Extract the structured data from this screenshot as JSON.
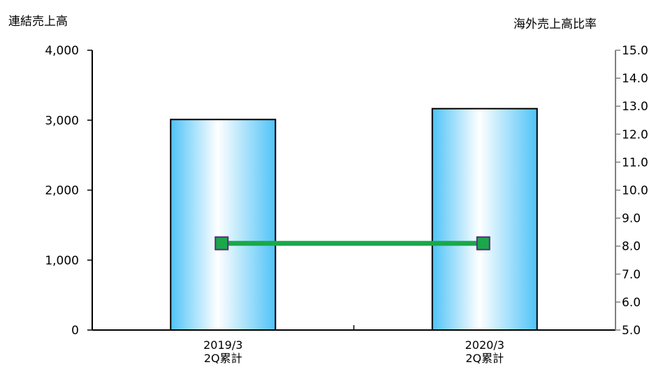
{
  "chart_data": {
    "type": "bar",
    "categories": [
      [
        "2019/3",
        "2Q累計"
      ],
      [
        "2020/3",
        "2Q累計"
      ]
    ],
    "left_axis": {
      "title": "連結売上高",
      "ylim": [
        0,
        4000
      ],
      "ticks": [
        0,
        1000,
        2000,
        3000,
        4000
      ],
      "tick_labels": [
        "0",
        "1,000",
        "2,000",
        "3,000",
        "4,000"
      ]
    },
    "right_axis": {
      "title": "海外売上高比率",
      "ylim": [
        5.0,
        15.0
      ],
      "ticks": [
        5,
        6,
        7,
        8,
        9,
        10,
        11,
        12,
        13,
        14,
        15
      ],
      "tick_labels": [
        "5.0",
        "6.0",
        "7.0",
        "8.0",
        "9.0",
        "10.0",
        "11.0",
        "12.0",
        "13.0",
        "14.0",
        "15.0"
      ]
    },
    "series": [
      {
        "type": "bar",
        "axis": "left",
        "values": [
          3010,
          3165
        ]
      },
      {
        "type": "line",
        "axis": "right",
        "values": [
          8.1,
          8.1
        ]
      }
    ],
    "grid": false,
    "legend": "none",
    "colors": {
      "bar_edge": "#4fc3f7",
      "bar_center": "#ffffff",
      "line": "#1aa84a",
      "marker": "#1aa84a",
      "marker_border": "#5b2c83"
    }
  }
}
